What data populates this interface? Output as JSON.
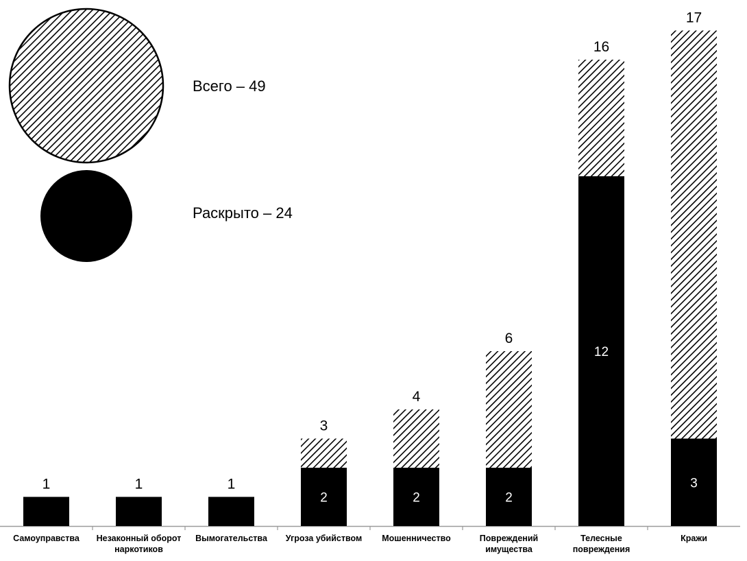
{
  "legend": {
    "total_label": "Всего – 49",
    "solved_label": "Раскрыто – 24"
  },
  "colors": {
    "solved": "#000000",
    "hatch": "#000000",
    "background": "#ffffff"
  },
  "chart_data": {
    "type": "bar",
    "stacked": true,
    "categories": [
      [
        "Самоуправства"
      ],
      [
        "Незаконный оборот",
        "наркотиков"
      ],
      [
        "Вымогательства"
      ],
      [
        "Угроза убийством"
      ],
      [
        "Мошенничество"
      ],
      [
        "Повреждений",
        "имущества"
      ],
      [
        "Телесные",
        "повреждения"
      ],
      [
        "Кражи"
      ]
    ],
    "totals": [
      1,
      1,
      1,
      3,
      4,
      6,
      16,
      17
    ],
    "series": [
      {
        "name": "Раскрыто",
        "values": [
          1,
          1,
          1,
          2,
          2,
          2,
          12,
          3
        ],
        "fill": "solid"
      },
      {
        "name": "Всего",
        "values": [
          0,
          0,
          0,
          1,
          2,
          4,
          4,
          14
        ],
        "fill": "hatched"
      }
    ],
    "inner_labels": [
      "",
      "",
      "",
      "2",
      "2",
      "2",
      "12",
      "3"
    ],
    "ylim": [
      0,
      17
    ],
    "grid": false,
    "legend_position": "top-left"
  }
}
